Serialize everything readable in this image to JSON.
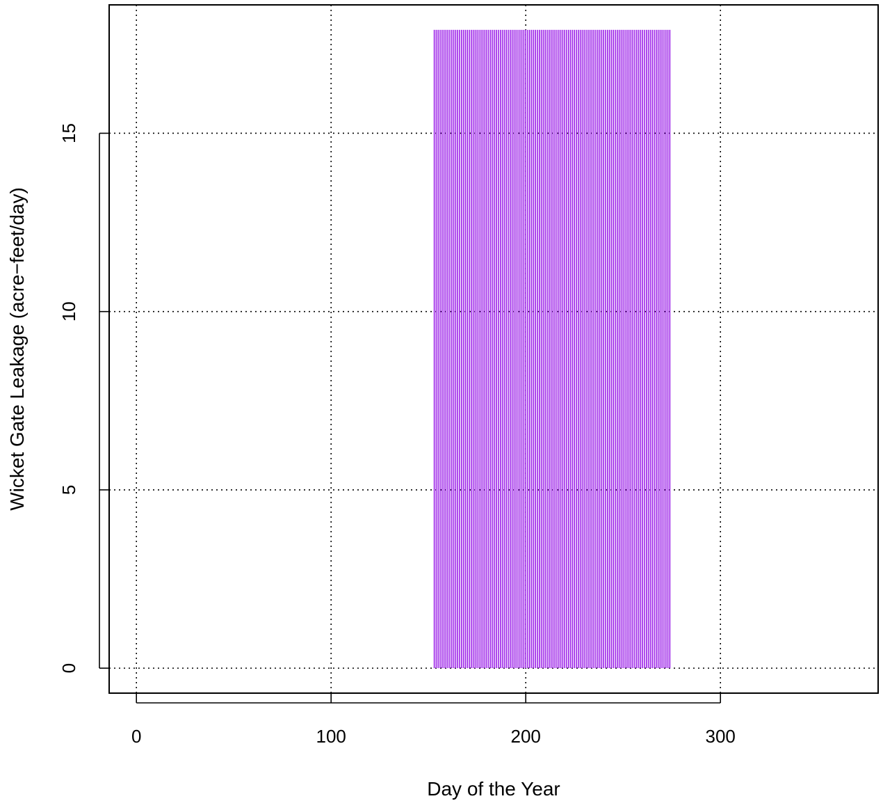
{
  "chart_data": {
    "type": "bar",
    "title": "",
    "xlabel": "Day of the Year",
    "ylabel": "Wicket Gate Leakage (acre−feet/day)",
    "xlim": [
      -14,
      381
    ],
    "ylim": [
      -0.7,
      18.6
    ],
    "x_ticks": [
      0,
      100,
      200,
      300
    ],
    "x_tick_labels": [
      "0",
      "100",
      "200",
      "300"
    ],
    "y_ticks": [
      0,
      5,
      10,
      15
    ],
    "y_tick_labels": [
      "0",
      "5",
      "10",
      "15"
    ],
    "grid": true,
    "grid_style": "dotted",
    "bar_color": "#9b1fe8",
    "series": [
      {
        "x_start": 153,
        "x_end": 274,
        "value": 17.9
      }
    ]
  }
}
